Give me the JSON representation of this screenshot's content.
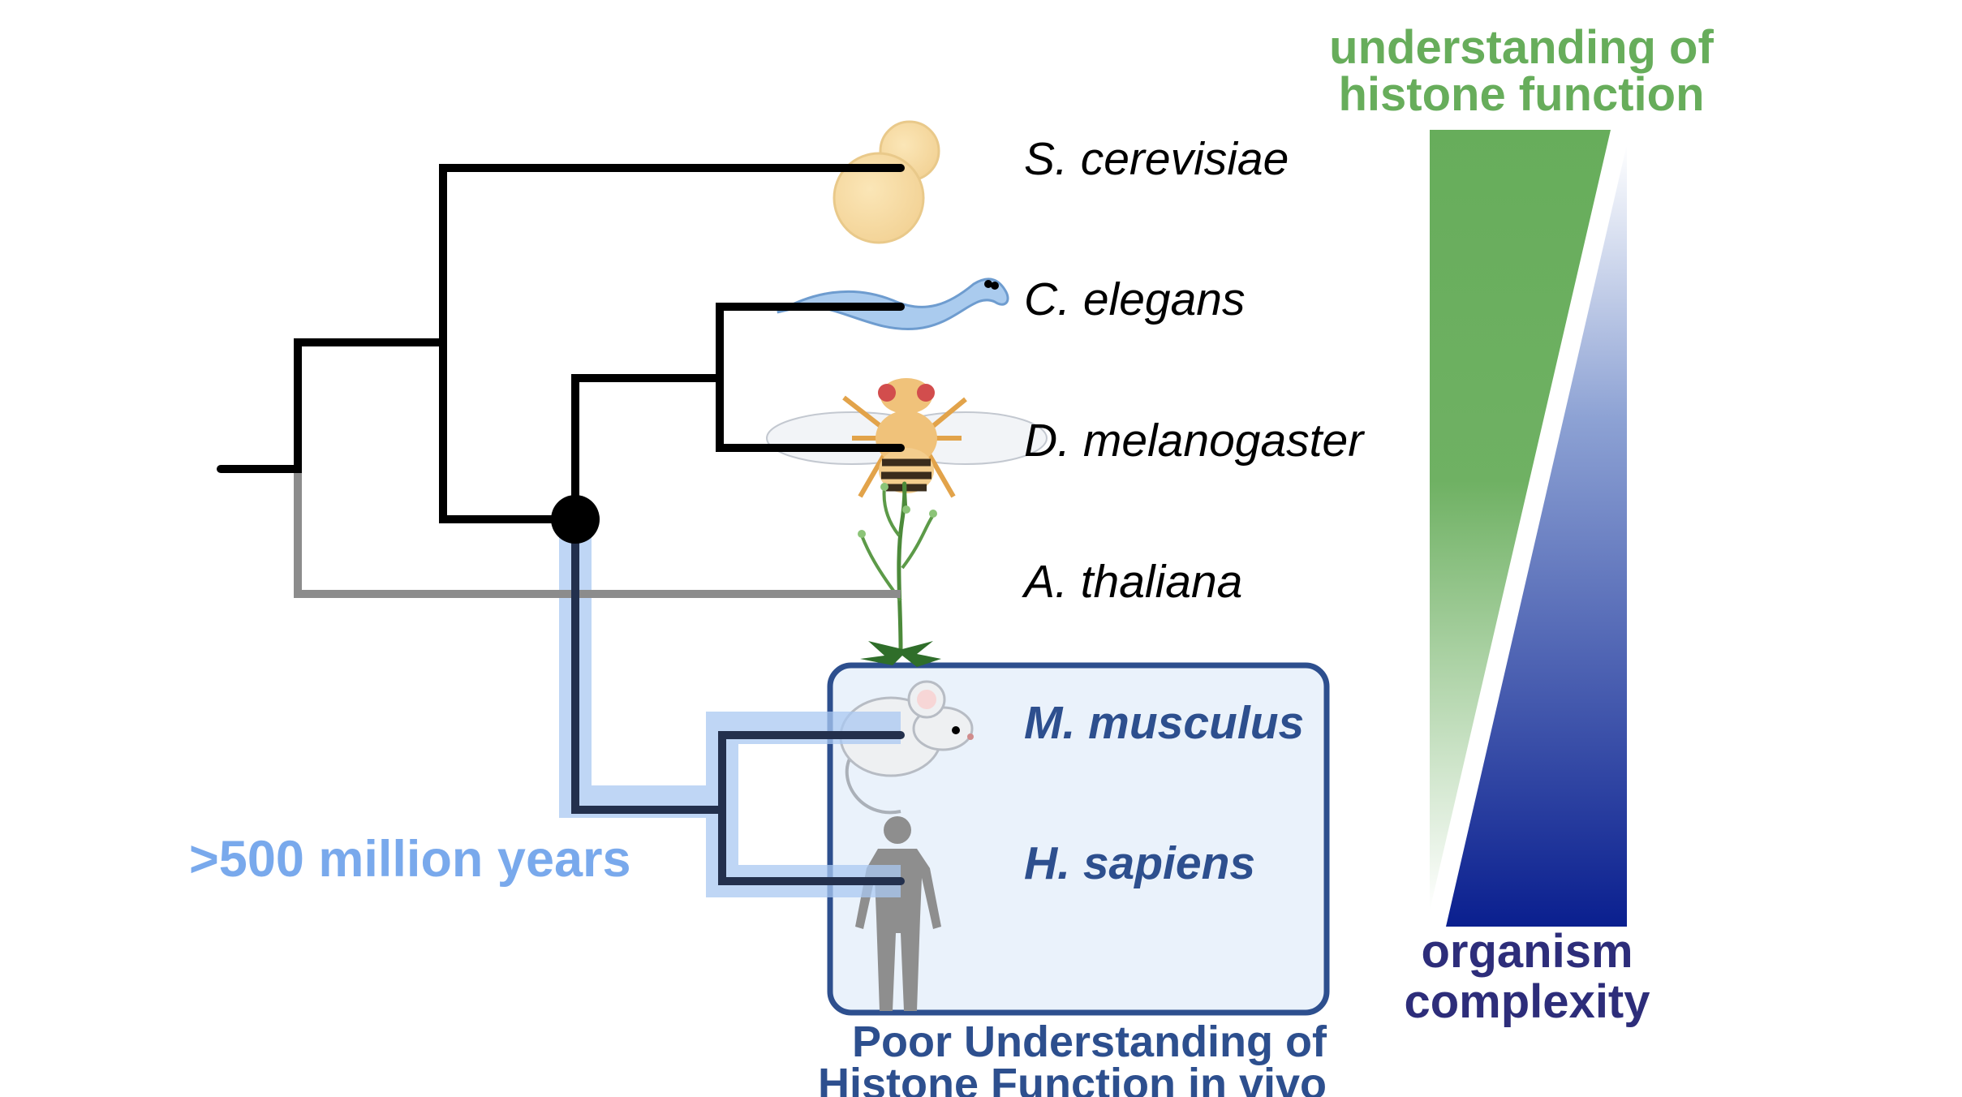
{
  "species": [
    {
      "id": "s-cerevisiae",
      "label": "S. cerevisiae",
      "icon": "yeast-icon",
      "highlighted": false
    },
    {
      "id": "c-elegans",
      "label": "C. elegans",
      "icon": "worm-icon",
      "highlighted": false
    },
    {
      "id": "d-melanogaster",
      "label": "D. melanogaster",
      "icon": "fly-icon",
      "highlighted": false
    },
    {
      "id": "a-thaliana",
      "label": "A. thaliana",
      "icon": "plant-icon",
      "highlighted": false
    },
    {
      "id": "m-musculus",
      "label": "M. musculus",
      "icon": "mouse-icon",
      "highlighted": true
    },
    {
      "id": "h-sapiens",
      "label": "H. sapiens",
      "icon": "human-icon",
      "highlighted": true
    }
  ],
  "divergence_label": ">500 million years",
  "highlight_box_caption": [
    "Poor Understanding of",
    "Histone Function in vivo"
  ],
  "understanding_label": [
    "understanding of",
    "histone function"
  ],
  "complexity_label": [
    "organism",
    "complexity"
  ],
  "colors": {
    "tree": "#000000",
    "plant_branch": "#8c8c8c",
    "lineage_highlight": "#a9c8f2",
    "box_border": "#2d4f8e",
    "box_fill": "#eaf2fb",
    "divergence_text": "#79a9ec",
    "understanding_green": "#67ad5b",
    "complexity_blue": "#0a1f8f",
    "complexity_text": "#2d2d7a",
    "caption_blue": "#2d4f8e"
  }
}
